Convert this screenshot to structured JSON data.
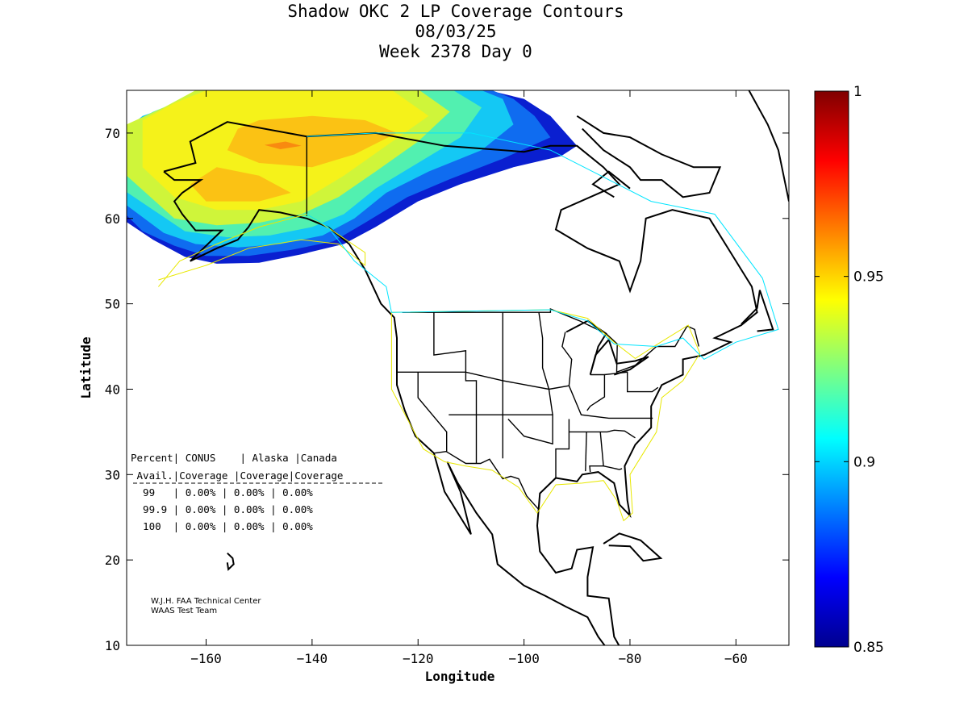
{
  "title": {
    "line1": "Shadow OKC 2 LP Coverage Contours",
    "line2": "08/03/25",
    "line3": "Week 2378 Day 0"
  },
  "chart_data": {
    "type": "heatmap",
    "xlabel": "Longitude",
    "ylabel": "Latitude",
    "xlim": [
      -175,
      -50
    ],
    "ylim": [
      10,
      75
    ],
    "xticks": [
      -160,
      -140,
      -120,
      -100,
      -80,
      -60
    ],
    "yticks": [
      10,
      20,
      30,
      40,
      50,
      60,
      70
    ],
    "colorbar": {
      "range": [
        0.85,
        1
      ],
      "ticks": [
        "0.85",
        "0.9",
        "0.95",
        "1"
      ],
      "colormap": "jet"
    },
    "contour_levels": [
      {
        "value": 0.86,
        "color": "#0a1fd0"
      },
      {
        "value": 0.88,
        "color": "#0f6cf0"
      },
      {
        "value": 0.9,
        "color": "#14c8f4"
      },
      {
        "value": 0.92,
        "color": "#52f0b0"
      },
      {
        "value": 0.94,
        "color": "#cff53a"
      },
      {
        "value": 0.95,
        "color": "#f5f21a"
      },
      {
        "value": 0.96,
        "color": "#fbc214"
      },
      {
        "value": 0.97,
        "color": "#f98a10"
      }
    ]
  },
  "table": {
    "header1": "Percent| CONUS    | Alaska |Canada",
    "header2": " Avail.|Coverage |Coverage|Coverage",
    "rows": [
      "  99   | 0.00% | 0.00% | 0.00%",
      "  99.9 | 0.00% | 0.00% | 0.00%",
      "  100  | 0.00% | 0.00% | 0.00%"
    ]
  },
  "credits": {
    "line1": "W.J.H. FAA Technical Center",
    "line2": "WAAS Test Team"
  }
}
